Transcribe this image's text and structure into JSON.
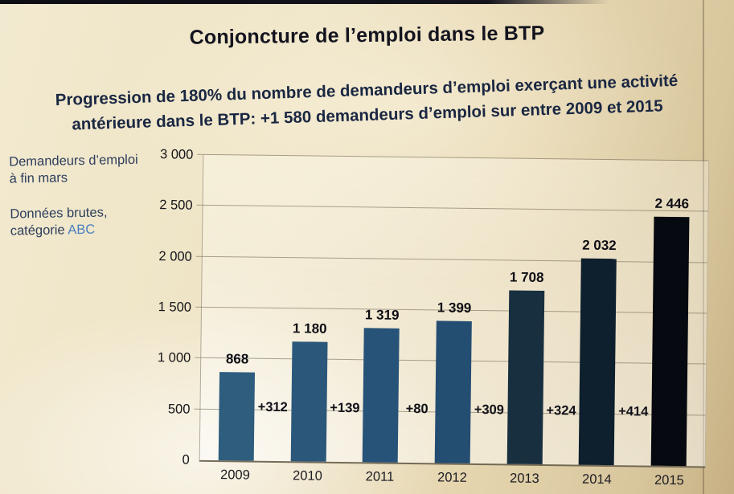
{
  "slide": {
    "title": "Conjoncture de l’emploi dans le  BTP",
    "subtitle": {
      "line1": "Progression de 180% du nombre de demandeurs d’emploi exerçant une activité",
      "line2": "antérieure dans le BTP:  +1 580 demandeurs d’emploi sur entre 2009 et 2015"
    },
    "side_notes": {
      "note1_line1": "Demandeurs d’emploi",
      "note1_line2": "à fin mars",
      "note2_line1": "Données brutes,",
      "note2_line2_prefix": "catégorie ",
      "note2_highlight": "ABC"
    },
    "colors": {
      "background_beige": "#e9dcba",
      "title_text": "#14141f",
      "subtitle_text": "#1a2742",
      "side_note_text": "#2c3e5c",
      "abc_highlight": "#4a7fc0",
      "bar_blue": "#2e5d7e"
    }
  },
  "chart_data": {
    "type": "bar",
    "title": "Conjoncture de l’emploi dans le BTP",
    "annotations": [
      "Demandeurs d’emploi à fin mars",
      "Données brutes, catégorie ABC"
    ],
    "categories": [
      "2009",
      "2010",
      "2011",
      "2012",
      "2013",
      "2014",
      "2015"
    ],
    "values": [
      868,
      1180,
      1319,
      1399,
      1708,
      2032,
      2446
    ],
    "value_labels": [
      "868",
      "1 180",
      "1 319",
      "1 399",
      "1 708",
      "2 032",
      "2 446"
    ],
    "year_over_year_deltas": [
      312,
      139,
      80,
      309,
      324,
      414
    ],
    "delta_labels": [
      "+312",
      "+139",
      "+80",
      "+309",
      "+324",
      "+414"
    ],
    "delta_label_level": 500,
    "xlabel": "",
    "ylabel": "",
    "ylim": [
      0,
      3000
    ],
    "yticks": [
      0,
      500,
      1000,
      1500,
      2000,
      2500,
      3000
    ],
    "ytick_labels": [
      "0",
      "500",
      "1 000",
      "1 500",
      "2 000",
      "2 500",
      "3 000"
    ],
    "grid": true,
    "legend": false,
    "bar_colors": [
      "#2e5d7e",
      "#2b587a",
      "#285378",
      "#244d72",
      "#182f40",
      "#0e1f2d",
      "#06090f"
    ]
  }
}
